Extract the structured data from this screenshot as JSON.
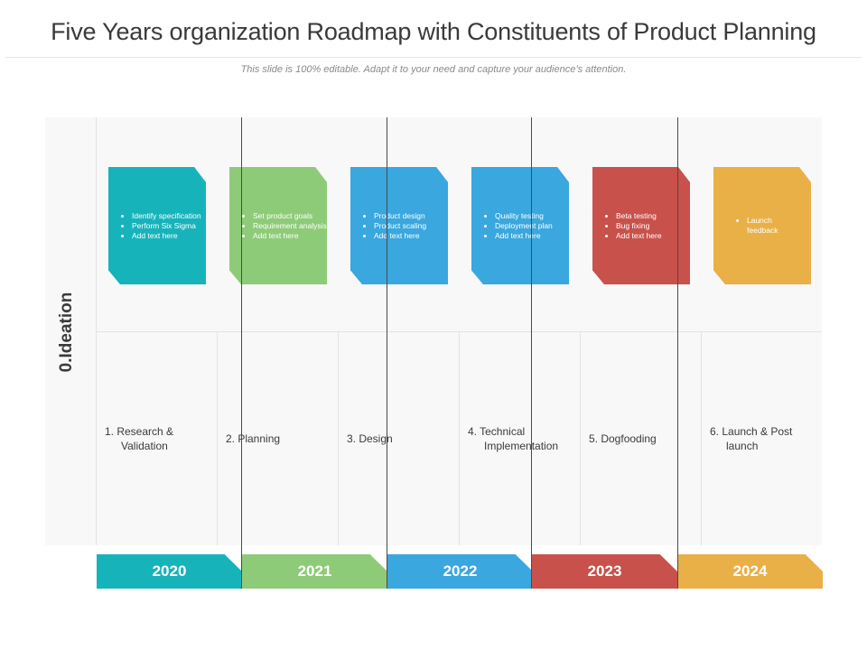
{
  "title": "Five Years organization Roadmap with Constituents of Product Planning",
  "subtitle": "This slide is 100% editable. Adapt it to your need and capture your audience’s attention.",
  "phase_label": "0.Ideation",
  "colors": {
    "teal": "#17b3bb",
    "green": "#8ecb78",
    "blue": "#3aa7de",
    "red": "#c9514b",
    "orange": "#e9b048"
  },
  "cards": [
    {
      "color": "#17b3bb",
      "items": [
        "Identify specification",
        "Perform Six Sigma",
        "Add text here"
      ]
    },
    {
      "color": "#8ecb78",
      "items": [
        "Set product goals",
        "Requirement analysis",
        "Add text here"
      ]
    },
    {
      "color": "#3aa7de",
      "items": [
        "Product design",
        "Product scaling",
        "Add text here"
      ]
    },
    {
      "color": "#3aa7de",
      "items": [
        "Quality testing",
        "Deployment plan",
        "Add text here"
      ]
    },
    {
      "color": "#c9514b",
      "items": [
        "Beta testing",
        "Bug fixing",
        "Add text here"
      ]
    },
    {
      "color": "#e9b048",
      "items": [
        "Launch feedback"
      ]
    }
  ],
  "stages": [
    {
      "line1": "1. Research &",
      "line2": "Validation"
    },
    {
      "line1": "2. Planning",
      "line2": ""
    },
    {
      "line1": "3. Design",
      "line2": ""
    },
    {
      "line1": "4. Technical",
      "line2": "Implementation"
    },
    {
      "line1": "5. Dogfooding",
      "line2": ""
    },
    {
      "line1": "6. Launch & Post",
      "line2": "launch"
    }
  ],
  "years": [
    {
      "label": "2020",
      "color": "#17b3bb"
    },
    {
      "label": "2021",
      "color": "#8ecb78"
    },
    {
      "label": "2022",
      "color": "#3aa7de"
    },
    {
      "label": "2023",
      "color": "#c9514b"
    },
    {
      "label": "2024",
      "color": "#e9b048"
    }
  ]
}
